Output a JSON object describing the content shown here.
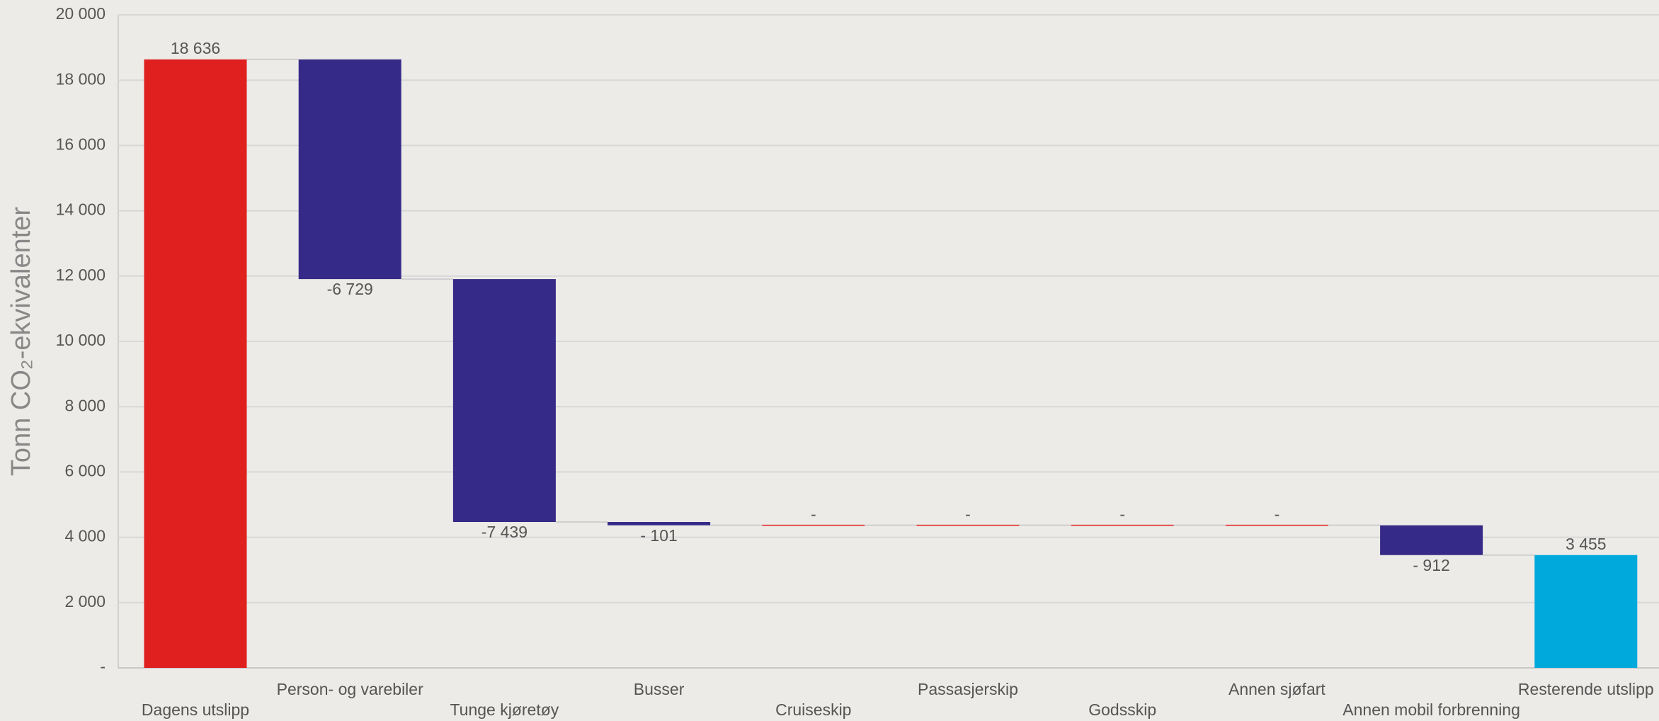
{
  "chart_data": {
    "type": "waterfall",
    "y_label": "Tonn CO₂-ekvivalenter",
    "categories": [
      "Dagens utslipp",
      "Person- og varebiler",
      "Tunge kjøretøy",
      "Busser",
      "Cruiseskip",
      "Passasjerskip",
      "Godsskip",
      "Annen sjøfart",
      "Annen mobil forbrenning",
      "Resterende utslipp"
    ],
    "values": [
      18636,
      -6729,
      -7439,
      -101,
      0,
      0,
      0,
      0,
      -912,
      3455
    ],
    "value_labels": [
      "18 636",
      "-6 729",
      "-7 439",
      "- 101",
      "-",
      "-",
      "-",
      "-",
      "- 912",
      "3 455"
    ],
    "colors": [
      "#e01f1f",
      "#352a87",
      "#352a87",
      "#352a87",
      "#e01f1f",
      "#e01f1f",
      "#e01f1f",
      "#e01f1f",
      "#352a87",
      "#00a9dc"
    ],
    "ylim": [
      0,
      20000
    ],
    "yticks": [
      {
        "value": 0,
        "label": "-"
      },
      {
        "value": 2000,
        "label": "2 000"
      },
      {
        "value": 4000,
        "label": "4 000"
      },
      {
        "value": 6000,
        "label": "6 000"
      },
      {
        "value": 8000,
        "label": "8 000"
      },
      {
        "value": 10000,
        "label": "10 000"
      },
      {
        "value": 12000,
        "label": "12 000"
      },
      {
        "value": 14000,
        "label": "14 000"
      },
      {
        "value": 16000,
        "label": "16 000"
      },
      {
        "value": 18000,
        "label": "18 000"
      },
      {
        "value": 20000,
        "label": "20 000"
      }
    ],
    "grid": true
  }
}
